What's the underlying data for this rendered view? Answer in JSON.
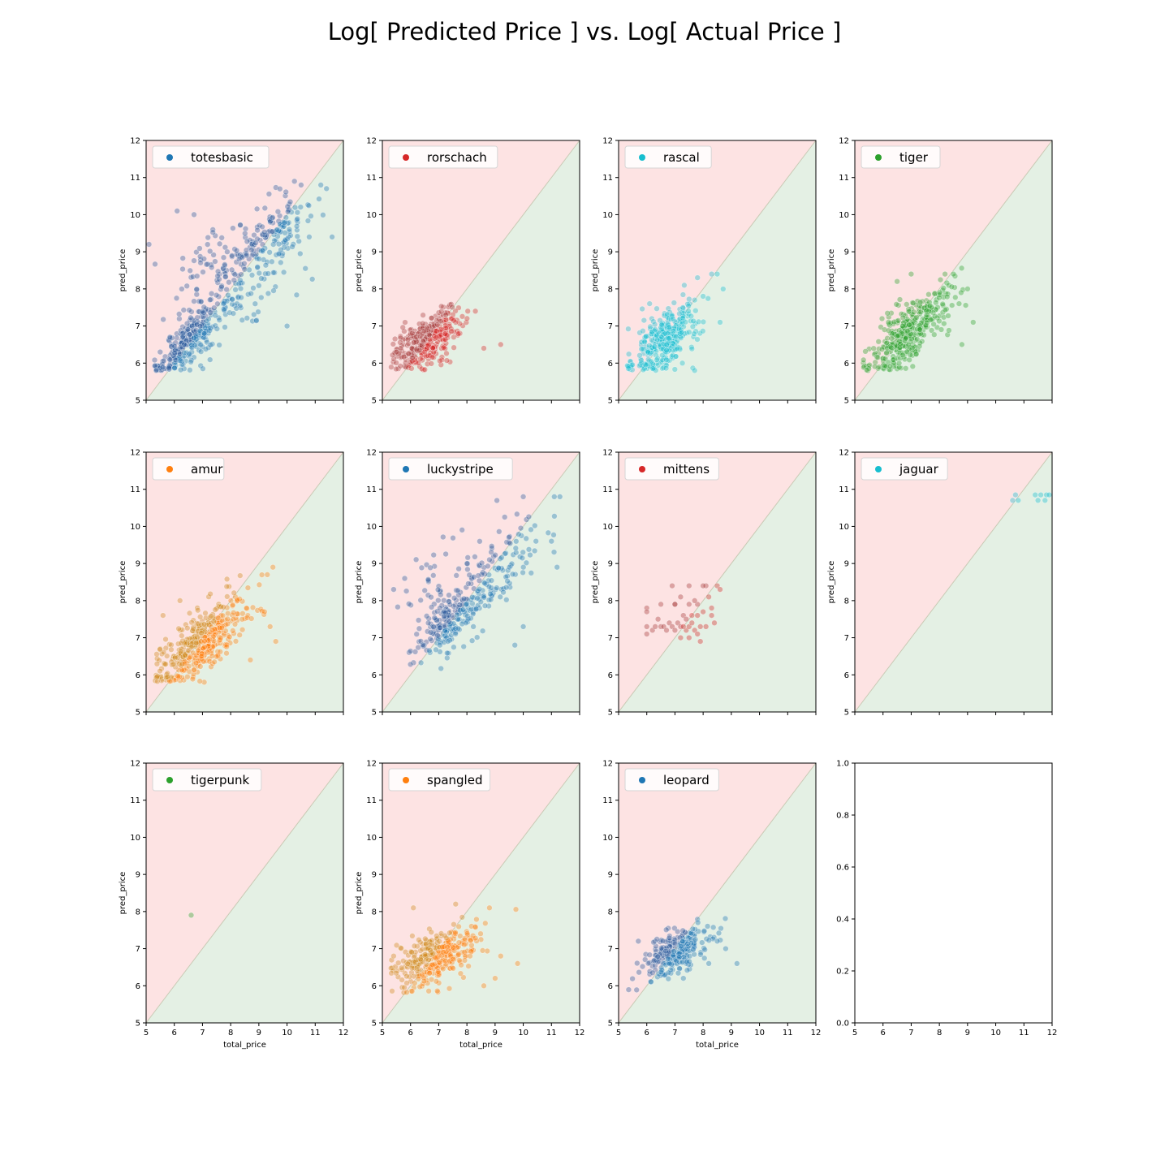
{
  "title": "Log[ Predicted Price ] vs. Log[ Actual Price ]",
  "colors": {
    "over_region": "#fde3e3",
    "under_region": "#e4f0e4",
    "diagonal": "#c9c9b4",
    "blue": "#1f77b4",
    "red": "#d62728",
    "cyan": "#17becf",
    "green": "#2ca02c",
    "orange": "#ff7f0e",
    "mate_blue": "#2a5a9c",
    "mate_red": "#a53a3a",
    "mate_orange": "#d08a1e"
  },
  "chart_data": [
    {
      "type": "scatter",
      "legend": "totesbasic",
      "color_key": "blue",
      "xlabel": "",
      "ylabel": "pred_price",
      "xlim": [
        5,
        12
      ],
      "ylim": [
        5,
        12
      ],
      "xticks": [
        5,
        6,
        7,
        8,
        9,
        10,
        11,
        12
      ],
      "yticks": [
        5,
        6,
        7,
        8,
        9,
        10,
        11,
        12
      ],
      "show_xtick_labels": false,
      "clusters": [
        {
          "cx": 6.5,
          "cy": 6.6,
          "sx": 0.55,
          "sy": 0.5,
          "n": 260,
          "corr": 0.85
        },
        {
          "cx": 8.2,
          "cy": 8.0,
          "sx": 1.2,
          "sy": 1.0,
          "n": 180,
          "corr": 0.8
        },
        {
          "cx": 7.5,
          "cy": 8.6,
          "sx": 0.9,
          "sy": 0.6,
          "n": 70,
          "corr": 0.3
        },
        {
          "cx": 9.6,
          "cy": 9.6,
          "sx": 0.6,
          "sy": 0.5,
          "n": 90,
          "corr": 0.6
        }
      ],
      "points": [
        [
          11.2,
          10.8
        ],
        [
          11.6,
          9.4
        ],
        [
          5.1,
          9.2
        ],
        [
          10.0,
          7.0
        ],
        [
          6.7,
          10.0
        ],
        [
          6.1,
          10.1
        ],
        [
          11.4,
          10.7
        ],
        [
          10.5,
          10.8
        ]
      ]
    },
    {
      "type": "scatter",
      "legend": "rorschach",
      "color_key": "red",
      "xlabel": "",
      "ylabel": "pred_price",
      "xlim": [
        5,
        12
      ],
      "ylim": [
        5,
        12
      ],
      "xticks": [
        5,
        6,
        7,
        8,
        9,
        10,
        11,
        12
      ],
      "yticks": [
        5,
        6,
        7,
        8,
        9,
        10,
        11,
        12
      ],
      "show_xtick_labels": false,
      "clusters": [
        {
          "cx": 6.6,
          "cy": 6.6,
          "sx": 0.6,
          "sy": 0.4,
          "n": 320,
          "corr": 0.6
        }
      ],
      "points": [
        [
          9.2,
          6.5
        ],
        [
          8.6,
          6.4
        ],
        [
          8.3,
          7.4
        ],
        [
          5.5,
          6.3
        ]
      ]
    },
    {
      "type": "scatter",
      "legend": "rascal",
      "color_key": "cyan",
      "xlabel": "",
      "ylabel": "pred_price",
      "xlim": [
        5,
        12
      ],
      "ylim": [
        5,
        12
      ],
      "xticks": [
        5,
        6,
        7,
        8,
        9,
        10,
        11,
        12
      ],
      "yticks": [
        5,
        6,
        7,
        8,
        9,
        10,
        11,
        12
      ],
      "show_xtick_labels": false,
      "clusters": [
        {
          "cx": 6.6,
          "cy": 6.6,
          "sx": 0.6,
          "sy": 0.45,
          "n": 340,
          "corr": 0.6
        }
      ],
      "points": [
        [
          8.5,
          8.4
        ],
        [
          8.3,
          8.4
        ],
        [
          7.8,
          8.3
        ],
        [
          7.7,
          7.7
        ],
        [
          8.6,
          7.1
        ],
        [
          7.7,
          5.8
        ],
        [
          6.1,
          7.6
        ],
        [
          8.0,
          7.8
        ]
      ]
    },
    {
      "type": "scatter",
      "legend": "tiger",
      "color_key": "green",
      "xlabel": "",
      "ylabel": "pred_price",
      "xlim": [
        5,
        12
      ],
      "ylim": [
        5,
        12
      ],
      "xticks": [
        5,
        6,
        7,
        8,
        9,
        10,
        11,
        12
      ],
      "yticks": [
        5,
        6,
        7,
        8,
        9,
        10,
        11,
        12
      ],
      "show_xtick_labels": false,
      "clusters": [
        {
          "cx": 6.9,
          "cy": 6.8,
          "sx": 0.75,
          "sy": 0.55,
          "n": 380,
          "corr": 0.75
        }
      ],
      "points": [
        [
          8.5,
          8.4
        ],
        [
          8.2,
          8.4
        ],
        [
          9.0,
          8.0
        ],
        [
          9.2,
          7.1
        ],
        [
          8.8,
          6.5
        ],
        [
          7.0,
          8.4
        ],
        [
          6.5,
          8.2
        ],
        [
          8.7,
          7.6
        ]
      ]
    },
    {
      "type": "scatter",
      "legend": "amur",
      "color_key": "orange",
      "xlabel": "",
      "ylabel": "pred_price",
      "xlim": [
        5,
        12
      ],
      "ylim": [
        5,
        12
      ],
      "xticks": [
        5,
        6,
        7,
        8,
        9,
        10,
        11,
        12
      ],
      "yticks": [
        5,
        6,
        7,
        8,
        9,
        10,
        11,
        12
      ],
      "show_xtick_labels": false,
      "clusters": [
        {
          "cx": 7.0,
          "cy": 6.9,
          "sx": 0.85,
          "sy": 0.6,
          "n": 420,
          "corr": 0.72
        }
      ],
      "points": [
        [
          9.5,
          8.9
        ],
        [
          9.3,
          8.7
        ],
        [
          9.6,
          6.9
        ],
        [
          9.2,
          7.7
        ],
        [
          5.6,
          7.6
        ],
        [
          6.2,
          8.0
        ],
        [
          8.7,
          6.4
        ],
        [
          9.4,
          7.3
        ]
      ]
    },
    {
      "type": "scatter",
      "legend": "luckystripe",
      "color_key": "blue",
      "xlabel": "",
      "ylabel": "pred_price",
      "xlim": [
        5,
        12
      ],
      "ylim": [
        5,
        12
      ],
      "xticks": [
        5,
        6,
        7,
        8,
        9,
        10,
        11,
        12
      ],
      "yticks": [
        5,
        6,
        7,
        8,
        9,
        10,
        11,
        12
      ],
      "show_xtick_labels": false,
      "clusters": [
        {
          "cx": 7.2,
          "cy": 7.3,
          "sx": 0.6,
          "sy": 0.5,
          "n": 150,
          "corr": 0.7
        },
        {
          "cx": 8.7,
          "cy": 8.5,
          "sx": 1.0,
          "sy": 0.9,
          "n": 150,
          "corr": 0.8
        },
        {
          "cx": 7.3,
          "cy": 8.5,
          "sx": 0.8,
          "sy": 0.6,
          "n": 50,
          "corr": 0.3
        }
      ],
      "points": [
        [
          11.3,
          10.8
        ],
        [
          11.1,
          10.8
        ],
        [
          10.0,
          10.8
        ],
        [
          5.4,
          8.3
        ],
        [
          11.2,
          8.9
        ],
        [
          9.7,
          6.8
        ],
        [
          11.0,
          9.6
        ],
        [
          10.0,
          7.3
        ]
      ]
    },
    {
      "type": "scatter",
      "legend": "mittens",
      "color_key": "red",
      "xlabel": "",
      "ylabel": "pred_price",
      "xlim": [
        5,
        12
      ],
      "ylim": [
        5,
        12
      ],
      "xticks": [
        5,
        6,
        7,
        8,
        9,
        10,
        11,
        12
      ],
      "yticks": [
        5,
        6,
        7,
        8,
        9,
        10,
        11,
        12
      ],
      "show_xtick_labels": false,
      "points": [
        [
          6.0,
          7.8
        ],
        [
          6.0,
          7.7
        ],
        [
          6.0,
          7.3
        ],
        [
          6.0,
          7.1
        ],
        [
          6.2,
          7.2
        ],
        [
          6.4,
          7.5
        ],
        [
          6.5,
          7.3
        ],
        [
          6.6,
          7.3
        ],
        [
          6.7,
          7.2
        ],
        [
          6.8,
          7.4
        ],
        [
          6.9,
          7.3
        ],
        [
          7.0,
          7.2
        ],
        [
          7.0,
          7.9
        ],
        [
          7.1,
          7.4
        ],
        [
          7.2,
          7.3
        ],
        [
          7.2,
          7.0
        ],
        [
          7.3,
          7.6
        ],
        [
          7.4,
          7.2
        ],
        [
          7.4,
          7.5
        ],
        [
          7.5,
          7.3
        ],
        [
          7.5,
          7.0
        ],
        [
          7.6,
          7.4
        ],
        [
          7.6,
          7.6
        ],
        [
          7.7,
          7.2
        ],
        [
          7.8,
          7.9
        ],
        [
          7.8,
          7.1
        ],
        [
          7.9,
          7.3
        ],
        [
          8.0,
          7.7
        ],
        [
          8.1,
          8.4
        ],
        [
          8.2,
          8.1
        ],
        [
          8.3,
          7.6
        ],
        [
          8.4,
          7.4
        ],
        [
          8.5,
          8.4
        ],
        [
          8.6,
          8.3
        ],
        [
          8.3,
          7.8
        ],
        [
          8.0,
          8.4
        ],
        [
          7.5,
          8.4
        ],
        [
          7.2,
          8.1
        ],
        [
          6.9,
          8.4
        ],
        [
          7.0,
          7.9
        ],
        [
          7.9,
          6.9
        ],
        [
          7.5,
          7.9
        ],
        [
          6.5,
          7.9
        ],
        [
          7.3,
          7.3
        ],
        [
          8.1,
          7.3
        ],
        [
          7.7,
          8.0
        ],
        [
          6.3,
          7.3
        ],
        [
          7.8,
          7.6
        ]
      ]
    },
    {
      "type": "scatter",
      "legend": "jaguar",
      "color_key": "cyan",
      "xlabel": "",
      "ylabel": "pred_price",
      "xlim": [
        5,
        12
      ],
      "ylim": [
        5,
        12
      ],
      "xticks": [
        5,
        6,
        7,
        8,
        9,
        10,
        11,
        12
      ],
      "yticks": [
        5,
        6,
        7,
        8,
        9,
        10,
        11,
        12
      ],
      "show_xtick_labels": false,
      "points": [
        [
          10.6,
          10.7
        ],
        [
          10.7,
          10.85
        ],
        [
          10.8,
          10.7
        ],
        [
          11.4,
          10.85
        ],
        [
          11.5,
          10.7
        ],
        [
          11.6,
          10.85
        ],
        [
          11.75,
          10.7
        ],
        [
          11.8,
          10.85
        ],
        [
          11.9,
          10.85
        ]
      ]
    },
    {
      "type": "scatter",
      "legend": "tigerpunk",
      "color_key": "green",
      "xlabel": "total_price",
      "ylabel": "pred_price",
      "xlim": [
        5,
        12
      ],
      "ylim": [
        5,
        12
      ],
      "xticks": [
        5,
        6,
        7,
        8,
        9,
        10,
        11,
        12
      ],
      "yticks": [
        5,
        6,
        7,
        8,
        9,
        10,
        11,
        12
      ],
      "show_xtick_labels": true,
      "points": [
        [
          6.6,
          7.9
        ]
      ]
    },
    {
      "type": "scatter",
      "legend": "spangled",
      "color_key": "orange",
      "xlabel": "total_price",
      "ylabel": "pred_price",
      "xlim": [
        5,
        12
      ],
      "ylim": [
        5,
        12
      ],
      "xticks": [
        5,
        6,
        7,
        8,
        9,
        10,
        11,
        12
      ],
      "yticks": [
        5,
        6,
        7,
        8,
        9,
        10,
        11,
        12
      ],
      "show_xtick_labels": true,
      "clusters": [
        {
          "cx": 6.9,
          "cy": 6.8,
          "sx": 0.75,
          "sy": 0.4,
          "n": 340,
          "corr": 0.55
        }
      ],
      "points": [
        [
          9.8,
          6.6
        ],
        [
          9.2,
          6.8
        ],
        [
          8.8,
          8.1
        ],
        [
          7.6,
          8.2
        ],
        [
          6.1,
          8.1
        ],
        [
          5.4,
          6.8
        ],
        [
          9.0,
          6.2
        ],
        [
          8.6,
          6.0
        ]
      ]
    },
    {
      "type": "scatter",
      "legend": "leopard",
      "color_key": "blue",
      "xlabel": "total_price",
      "ylabel": "",
      "xlim": [
        5,
        12
      ],
      "ylim": [
        5,
        12
      ],
      "xticks": [
        5,
        6,
        7,
        8,
        9,
        10,
        11,
        12
      ],
      "yticks": [
        5,
        6,
        7,
        8,
        9,
        10,
        11,
        12
      ],
      "show_xtick_labels": true,
      "clusters": [
        {
          "cx": 7.0,
          "cy": 6.9,
          "sx": 0.6,
          "sy": 0.38,
          "n": 260,
          "corr": 0.65
        }
      ],
      "points": [
        [
          9.2,
          6.6
        ],
        [
          8.8,
          7.0
        ],
        [
          5.7,
          7.2
        ],
        [
          8.2,
          6.6
        ],
        [
          7.3,
          6.2
        ],
        [
          8.5,
          7.2
        ]
      ]
    },
    {
      "type": "empty",
      "legend": "",
      "xlim": [
        5,
        12
      ],
      "ylim": [
        0,
        1
      ],
      "xticks": [
        5,
        6,
        7,
        8,
        9,
        10,
        11,
        12
      ],
      "yticks": [
        0.0,
        0.2,
        0.4,
        0.6,
        0.8,
        1.0
      ],
      "show_xtick_labels": true
    }
  ]
}
